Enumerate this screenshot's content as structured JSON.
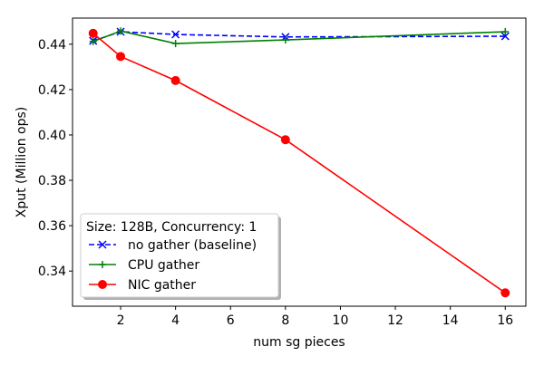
{
  "chart_data": {
    "type": "line",
    "title": "",
    "xlabel": "num sg pieces",
    "ylabel": "Xput (Million ops)",
    "xlim": [
      0.25,
      16.75
    ],
    "ylim": [
      0.3245,
      0.4515
    ],
    "x_ticks": [
      2,
      4,
      6,
      8,
      10,
      12,
      14,
      16
    ],
    "x_tick_labels": [
      "2",
      "4",
      "6",
      "8",
      "10",
      "12",
      "14",
      "16"
    ],
    "y_ticks": [
      0.34,
      0.36,
      0.38,
      0.4,
      0.42,
      0.44
    ],
    "y_tick_labels": [
      "0.34",
      "0.36",
      "0.38",
      "0.40",
      "0.42",
      "0.44"
    ],
    "grid": false,
    "legend": {
      "title": "Size: 128B, Concurrency: 1",
      "placement": "lower-left"
    },
    "series": [
      {
        "name": "no gather (baseline)",
        "color": "#0000ff",
        "line_style": "dashed",
        "marker": "x",
        "x": [
          1,
          2,
          4,
          8,
          16
        ],
        "values": [
          0.4415,
          0.4455,
          0.4443,
          0.4432,
          0.4435
        ]
      },
      {
        "name": "CPU gather",
        "color": "#008000",
        "line_style": "solid",
        "marker": "plus",
        "x": [
          1,
          2,
          4,
          8,
          16
        ],
        "values": [
          0.4412,
          0.4458,
          0.4403,
          0.4419,
          0.4455
        ]
      },
      {
        "name": "NIC gather",
        "color": "#ff0000",
        "line_style": "solid",
        "marker": "circle",
        "x": [
          1,
          2,
          4,
          8,
          16
        ],
        "values": [
          0.4448,
          0.4346,
          0.424,
          0.3979,
          0.3304
        ]
      }
    ]
  }
}
